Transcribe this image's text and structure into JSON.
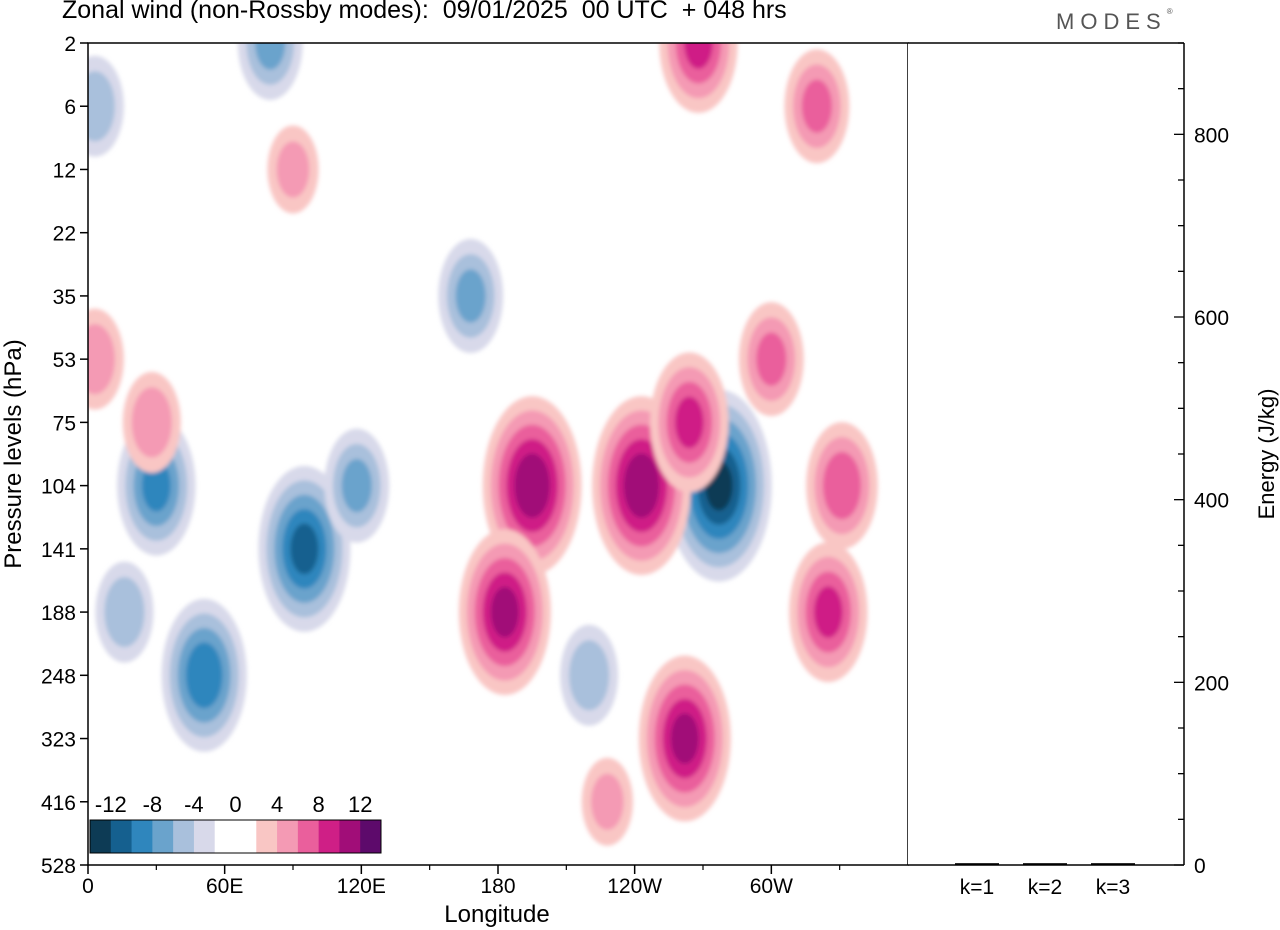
{
  "header": {
    "title": "Zonal wind (non-Rossby modes):  09/01/2025  00 UTC  + 048 hrs",
    "brand": "MODES",
    "brand_mark": "®"
  },
  "chart_data": [
    {
      "type": "heatmap",
      "title": "Zonal wind (non-Rossby modes):  09/01/2025  00 UTC  + 048 hrs",
      "xlabel": "Longitude",
      "ylabel": "Pressure levels (hPa)",
      "x_ticks": [
        "0",
        "60E",
        "120E",
        "180",
        "120W",
        "60W"
      ],
      "x_tick_values": [
        0,
        60,
        120,
        180,
        240,
        300
      ],
      "x_range": [
        0,
        360
      ],
      "y_ticks": [
        "2",
        "6",
        "12",
        "22",
        "35",
        "53",
        "75",
        "104",
        "141",
        "188",
        "248",
        "323",
        "416",
        "528"
      ],
      "y_scale": "model levels",
      "colorbar": {
        "labels": [
          "-12",
          "-8",
          "-4",
          "0",
          "4",
          "8",
          "12"
        ],
        "label_values": [
          -12,
          -8,
          -4,
          0,
          4,
          8,
          12
        ],
        "colors": [
          "#0d3b55",
          "#15608f",
          "#2f86bd",
          "#6aa3cc",
          "#a9c0dc",
          "#d8d9ea",
          "#ffffff",
          "#ffffff",
          "#f9c6c4",
          "#f49ab4",
          "#ea5f9c",
          "#cf1f86",
          "#a10d78",
          "#5d0a6b"
        ],
        "placement": "bottom-left"
      },
      "features": [
        {
          "lon": 51,
          "level": "248",
          "value": -9
        },
        {
          "lon": 95,
          "level": "141",
          "value": -10
        },
        {
          "lon": 30,
          "level": "104",
          "value": -8
        },
        {
          "lon": 118,
          "level": "104",
          "value": -6
        },
        {
          "lon": 168,
          "level": "35",
          "value": -6
        },
        {
          "lon": 220,
          "level": "248",
          "value": -5
        },
        {
          "lon": 277,
          "level": "104",
          "value": -12
        },
        {
          "lon": 16,
          "level": "188",
          "value": -5
        },
        {
          "lon": 3,
          "level": "6",
          "value": -5
        },
        {
          "lon": 80,
          "level": "2",
          "value": -6
        },
        {
          "lon": 195,
          "level": "104",
          "value": 11
        },
        {
          "lon": 183,
          "level": "188",
          "value": 10
        },
        {
          "lon": 243,
          "level": "104",
          "value": 11
        },
        {
          "lon": 264,
          "level": "75",
          "value": 8
        },
        {
          "lon": 262,
          "level": "323",
          "value": 10
        },
        {
          "lon": 331,
          "level": "104",
          "value": 7
        },
        {
          "lon": 325,
          "level": "188",
          "value": 8
        },
        {
          "lon": 300,
          "level": "53",
          "value": 6
        },
        {
          "lon": 268,
          "level": "2",
          "value": 8
        },
        {
          "lon": 320,
          "level": "6",
          "value": 6
        },
        {
          "lon": 3,
          "level": "53",
          "value": 5
        },
        {
          "lon": 28,
          "level": "75",
          "value": 5
        },
        {
          "lon": 90,
          "level": "12",
          "value": 4
        },
        {
          "lon": 228,
          "level": "416",
          "value": 4
        }
      ]
    },
    {
      "type": "bar",
      "title": "",
      "xlabel": "",
      "ylabel": "Energy (J/kg)",
      "categories": [
        "k=1",
        "k=2",
        "k=3"
      ],
      "values": [
        2,
        2,
        2
      ],
      "ylim": [
        0,
        900
      ],
      "y_ticks": [
        "0",
        "200",
        "400",
        "600",
        "800"
      ],
      "y_tick_values": [
        0,
        200,
        400,
        600,
        800
      ],
      "y_axis_side": "right"
    }
  ]
}
